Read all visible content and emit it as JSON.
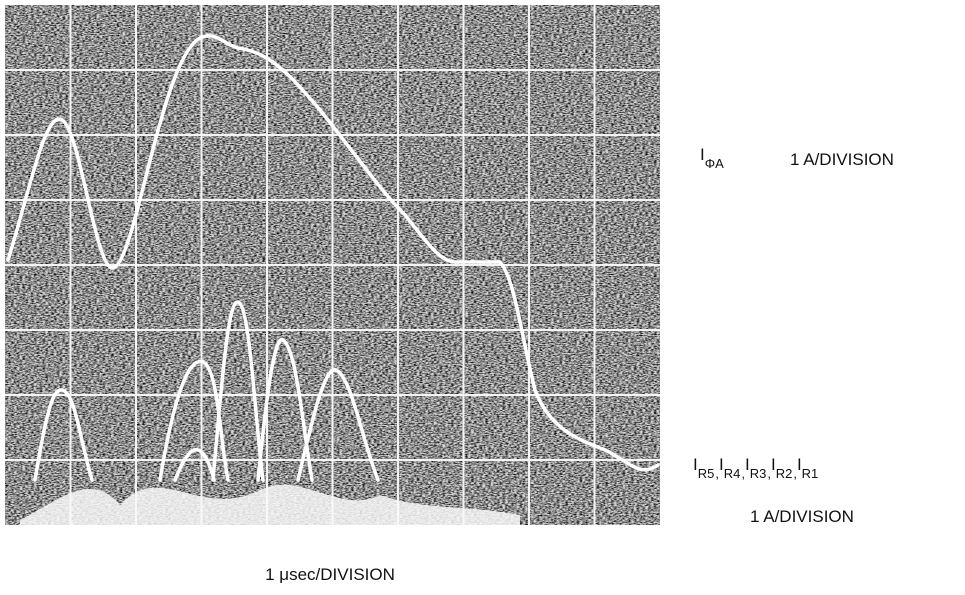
{
  "phase_current": {
    "symbol": "I",
    "subscript": "ΦA",
    "scale": "1 A/DIVISION"
  },
  "rotor_currents": {
    "items": [
      {
        "symbol": "I",
        "subscript": "R5",
        "separator": ","
      },
      {
        "symbol": "I",
        "subscript": "R4",
        "separator": ","
      },
      {
        "symbol": "I",
        "subscript": "R3",
        "separator": ","
      },
      {
        "symbol": "I",
        "subscript": "R2",
        "separator": ","
      },
      {
        "symbol": "I",
        "subscript": "R1"
      }
    ],
    "scale": "1 A/DIVISION"
  },
  "time_scale": "1 μsec/DIVISION"
}
